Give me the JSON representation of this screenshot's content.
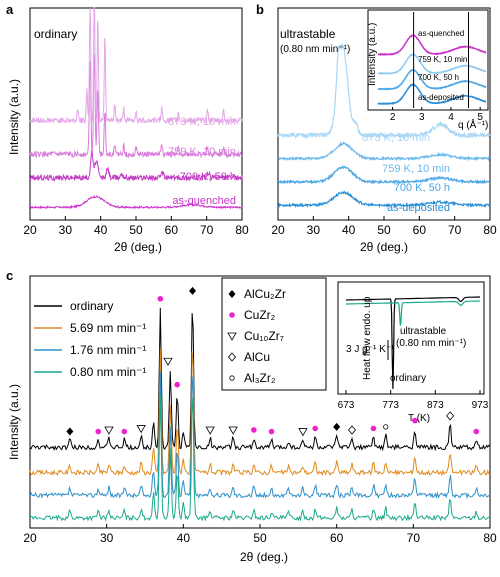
{
  "chart_data": [
    {
      "panel": "a",
      "type": "line",
      "xlabel": "2θ (deg.)",
      "ylabel": "Intensity (a.u.)",
      "xlim": [
        20,
        80
      ],
      "xticks": [
        "20",
        "30",
        "40",
        "50",
        "60",
        "70",
        "80"
      ],
      "annotations": [
        "ordinary"
      ],
      "series": [
        {
          "name": "as-quenched",
          "color": "#cc33cc",
          "style": "amorphous",
          "offset": 0.06,
          "peaks": [
            [
              38.5,
              0.05,
              3.5
            ],
            [
              66,
              0.012,
              4
            ]
          ]
        },
        {
          "name": "700 K, 50 h",
          "color": "#c43bc4",
          "style": "crystal",
          "offset": 0.2,
          "peaks": [
            [
              37.5,
              0.12,
              0.5
            ],
            [
              38.8,
              0.08,
              0.6
            ],
            [
              42,
              0.04,
              0.5
            ],
            [
              46,
              0.02,
              0.5
            ],
            [
              57.5,
              0.02,
              0.5
            ],
            [
              70.5,
              0.02,
              0.5
            ]
          ]
        },
        {
          "name": "759 K, 10 min",
          "color": "#d97bdc",
          "style": "crystal",
          "offset": 0.31,
          "peaks": [
            [
              37.0,
              0.45,
              0.3
            ],
            [
              38.2,
              0.5,
              0.3
            ],
            [
              39.2,
              0.3,
              0.3
            ],
            [
              41.2,
              0.2,
              0.3
            ],
            [
              44,
              0.05,
              0.3
            ],
            [
              46.5,
              0.04,
              0.3
            ],
            [
              50,
              0.03,
              0.3
            ],
            [
              57.3,
              0.05,
              0.3
            ],
            [
              62,
              0.03,
              0.3
            ],
            [
              70.2,
              0.04,
              0.3
            ],
            [
              74.8,
              0.03,
              0.3
            ]
          ]
        },
        {
          "name": "873 K, 10 min",
          "color": "#e4a6e8",
          "style": "crystal",
          "offset": 0.47,
          "peaks": [
            [
              37.0,
              0.6,
              0.25
            ],
            [
              38.2,
              0.65,
              0.25
            ],
            [
              39.2,
              0.5,
              0.25
            ],
            [
              41.2,
              0.4,
              0.25
            ],
            [
              36.1,
              0.15,
              0.25
            ],
            [
              33.5,
              0.06,
              0.25
            ],
            [
              44,
              0.08,
              0.25
            ],
            [
              46.5,
              0.06,
              0.25
            ],
            [
              50,
              0.05,
              0.25
            ],
            [
              57.3,
              0.06,
              0.25
            ],
            [
              62,
              0.04,
              0.25
            ],
            [
              70.2,
              0.06,
              0.25
            ],
            [
              74.8,
              0.05,
              0.25
            ]
          ]
        }
      ]
    },
    {
      "panel": "b",
      "type": "line",
      "xlabel": "2θ (deg.)",
      "xlim": [
        20,
        80
      ],
      "xticks": [
        "20",
        "30",
        "40",
        "50",
        "60",
        "70",
        "80"
      ],
      "annotations": [
        "ultrastable",
        "(0.80 nm min⁻¹)"
      ],
      "series": [
        {
          "name": "as-deposited",
          "color": "#2a8fd6",
          "style": "amorphous",
          "offset": 0.07,
          "peaks": [
            [
              38.5,
              0.06,
              3.8
            ],
            [
              66,
              0.015,
              4.5
            ]
          ]
        },
        {
          "name": "700 K, 50 h",
          "color": "#4aa6e4",
          "style": "amorphous",
          "offset": 0.18,
          "peaks": [
            [
              38.5,
              0.07,
              3.6
            ],
            [
              66,
              0.018,
              4.5
            ]
          ]
        },
        {
          "name": "759 K, 10 min",
          "color": "#6bb9ec",
          "style": "amorphous",
          "offset": 0.29,
          "peaks": [
            [
              38.5,
              0.07,
              3.6
            ],
            [
              66,
              0.018,
              4.5
            ]
          ]
        },
        {
          "name": "873 K, 10 min",
          "color": "#a9d6f5",
          "style": "crystal",
          "offset": 0.4,
          "peaks": [
            [
              38.3,
              0.42,
              2.0
            ],
            [
              37,
              0.12,
              0.6
            ],
            [
              42,
              0.05,
              0.8
            ],
            [
              66,
              0.05,
              3
            ]
          ]
        }
      ],
      "inset": {
        "xlabel": "q (Å⁻¹)",
        "ylabel": "Intensity (a.u.)",
        "xlim": [
          1.5,
          5.2
        ],
        "xticks": [
          "2",
          "3",
          "4",
          "5"
        ],
        "labels": [
          "as-quenched",
          "759 K, 10 min",
          "700 K, 50 h",
          "as-deposited"
        ]
      }
    },
    {
      "panel": "c",
      "type": "line",
      "xlabel": "2θ (deg.)",
      "ylabel": "Intensity (a.u.)",
      "xlim": [
        20,
        80
      ],
      "xticks": [
        "20",
        "30",
        "40",
        "50",
        "60",
        "70",
        "80"
      ],
      "series": [
        {
          "name": "ordinary",
          "color": "#000000",
          "offset": 0.32
        },
        {
          "name": "5.69 nm min⁻¹",
          "color": "#e08a1e",
          "offset": 0.22
        },
        {
          "name": "1.76 nm min⁻¹",
          "color": "#2d8fc9",
          "offset": 0.13
        },
        {
          "name": "0.80 nm min⁻¹",
          "color": "#1aa98a",
          "offset": 0.04
        }
      ],
      "peaks": [
        [
          25.2,
          0.05
        ],
        [
          28.9,
          0.05
        ],
        [
          30.3,
          0.06
        ],
        [
          32.3,
          0.05
        ],
        [
          34.5,
          0.07
        ],
        [
          36.1,
          0.18
        ],
        [
          37.0,
          0.9
        ],
        [
          38.3,
          0.5
        ],
        [
          39.2,
          0.35
        ],
        [
          40.0,
          0.1
        ],
        [
          41.2,
          0.95
        ],
        [
          43.5,
          0.06
        ],
        [
          46.5,
          0.06
        ],
        [
          49.2,
          0.06
        ],
        [
          51.5,
          0.05
        ],
        [
          53.7,
          0.04
        ],
        [
          55.6,
          0.05
        ],
        [
          57.2,
          0.07
        ],
        [
          60.0,
          0.08
        ],
        [
          62.0,
          0.06
        ],
        [
          64.8,
          0.07
        ],
        [
          66.4,
          0.08
        ],
        [
          70.2,
          0.12
        ],
        [
          74.8,
          0.15
        ],
        [
          78.2,
          0.05
        ]
      ],
      "legend_phases": [
        {
          "name": "AlCu₂Zr",
          "marker": "filled-diamond"
        },
        {
          "name": "CuZr₂",
          "marker": "magenta-dot"
        },
        {
          "name": "Cu₁₀Zr₇",
          "marker": "triangle-down"
        },
        {
          "name": "AlCu",
          "marker": "open-diamond"
        },
        {
          "name": "Al₃Zr₂",
          "marker": "open-circle"
        }
      ],
      "inset": {
        "ylabel": "Heat flow endo. up",
        "xlabel": "T (K)",
        "xlim": [
          673,
          973
        ],
        "xticks": [
          "673",
          "773",
          "873",
          "973"
        ],
        "labels": [
          "ultrastable",
          "(0.80 nm min⁻¹)",
          "ordinary",
          "3 J g⁻¹ K⁻¹"
        ]
      }
    }
  ],
  "panel_letters": {
    "a": "a",
    "b": "b",
    "c": "c"
  }
}
